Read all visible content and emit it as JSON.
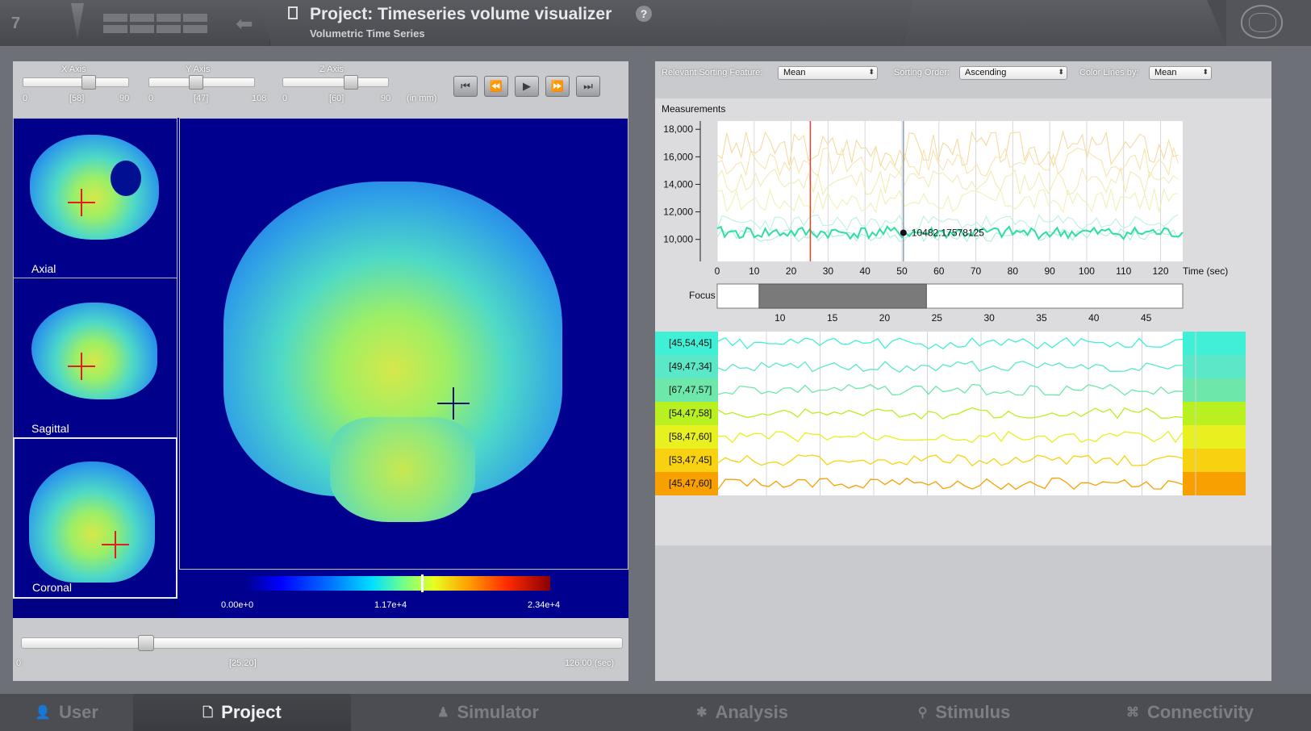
{
  "header": {
    "page_count": "7",
    "project_title": "Project: Timeseries volume visualizer",
    "project_subtitle": "Volumetric Time Series",
    "help_label": "?"
  },
  "axes": {
    "x": {
      "label": "X Axis",
      "min": "0",
      "value": "[58]",
      "max": "90",
      "fraction": 0.64
    },
    "y": {
      "label": "Y Axis",
      "min": "0",
      "value": "[47]",
      "max": "108",
      "fraction": 0.44
    },
    "z": {
      "label": "Z Axis",
      "min": "0",
      "value": "[60]",
      "max": "90",
      "fraction": 0.67
    },
    "unit": "(in mm)"
  },
  "playback": [
    "⏮",
    "⏪",
    "▶",
    "⏩",
    "⏭"
  ],
  "views": {
    "axial": "Axial",
    "sagittal": "Sagittal",
    "coronal": "Coronal"
  },
  "colorbar": {
    "min": "0.00e+0",
    "mid": "1.17e+4",
    "max": "2.34e+4"
  },
  "time_slider": {
    "min": "0",
    "value": "[25.20]",
    "max": "126.00 (sec)",
    "fraction": 0.2
  },
  "sorting": {
    "feature_label": "Relevant Sorting Feature:",
    "feature_value": "Mean",
    "order_label": "Sorting Order:",
    "order_value": "Ascending",
    "color_label": "Color Lines by:",
    "color_value": "Mean"
  },
  "measurements": {
    "title": "Measurements",
    "focus_label": "Focus",
    "tooltip": "10482.17578125",
    "x_unit": "Time (sec)"
  },
  "chart_data": {
    "type": "line",
    "title": "Measurements",
    "xlabel": "Time (sec)",
    "ylabel": "",
    "xlim": [
      0,
      126
    ],
    "ylim": [
      8400,
      18600
    ],
    "x_ticks": [
      0,
      10,
      20,
      30,
      40,
      50,
      60,
      70,
      80,
      90,
      100,
      110,
      120
    ],
    "y_ticks": [
      10000,
      12000,
      14000,
      16000,
      18000
    ],
    "y_tick_labels": [
      "10,000",
      "12,000",
      "14,000",
      "16,000",
      "18,000"
    ],
    "highlight_series_mean": 10482.17578125,
    "cursor_time": 25.2,
    "hover_time": 50.4,
    "focus_ticks": [
      10,
      15,
      20,
      25,
      30,
      35,
      40,
      45
    ],
    "focus_range": [
      8,
      24
    ]
  },
  "voxels": [
    {
      "label": "[45,54,45]",
      "color": "#3ff0d6"
    },
    {
      "label": "[49,47,34]",
      "color": "#5ae8c8"
    },
    {
      "label": "[67,47,57]",
      "color": "#6ee8aa"
    },
    {
      "label": "[54,47,58]",
      "color": "#b8f020"
    },
    {
      "label": "[58,47,60]",
      "color": "#e8f020"
    },
    {
      "label": "[53,47,45]",
      "color": "#f8d210"
    },
    {
      "label": "[45,47,60]",
      "color": "#f8a000"
    }
  ],
  "tabs": [
    {
      "label": "User",
      "icon": "👤"
    },
    {
      "label": "Project",
      "icon": "🗋"
    },
    {
      "label": "Simulator",
      "icon": "♟"
    },
    {
      "label": "Analysis",
      "icon": "✱"
    },
    {
      "label": "Stimulus",
      "icon": "⚲"
    },
    {
      "label": "Connectivity",
      "icon": "⌘"
    }
  ]
}
